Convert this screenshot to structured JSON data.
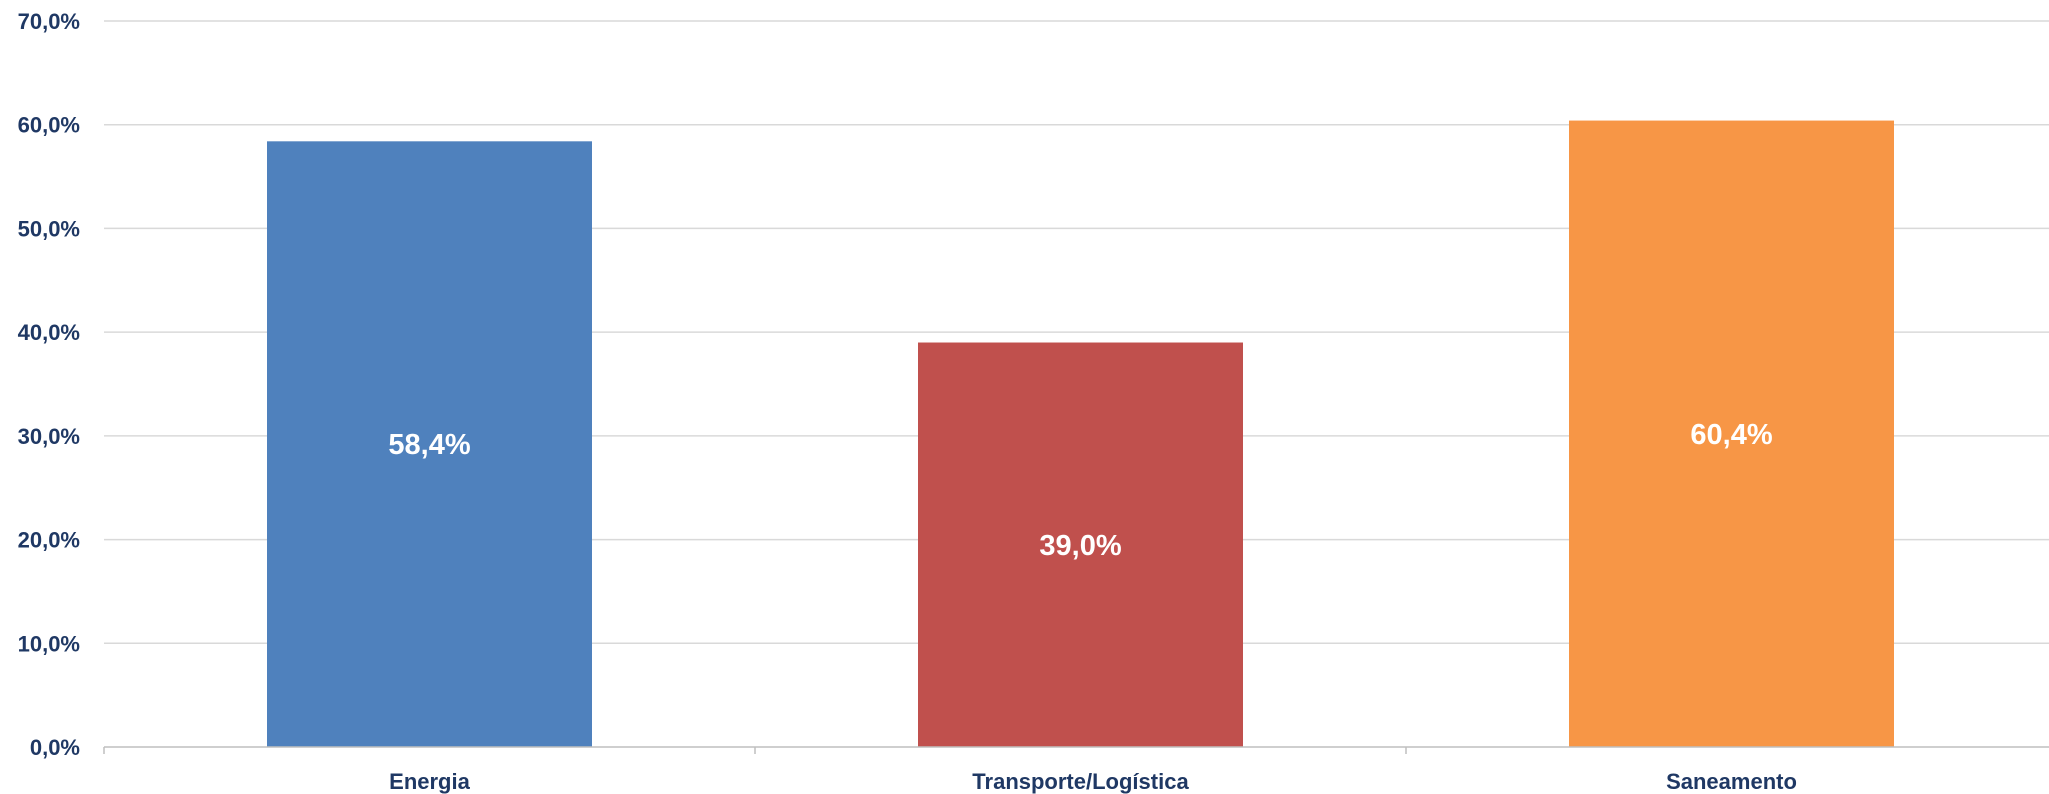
{
  "chart_data": {
    "type": "bar",
    "title": "",
    "xlabel": "",
    "ylabel": "",
    "categories": [
      "Energia",
      "Transporte/Logística",
      "Saneamento"
    ],
    "values": [
      58.4,
      39.0,
      60.4
    ],
    "data_labels": [
      "58,4%",
      "39,0%",
      "60,4%"
    ],
    "colors": [
      "#4f81bd",
      "#c0504d",
      "#f79646"
    ],
    "ylim": [
      0,
      70
    ],
    "y_ticks": [
      0,
      10,
      20,
      30,
      40,
      50,
      60,
      70
    ],
    "y_tick_labels": [
      "0,0%",
      "10,0%",
      "20,0%",
      "30,0%",
      "40,0%",
      "50,0%",
      "60,0%",
      "70,0%"
    ],
    "grid": true,
    "legend": "none"
  }
}
